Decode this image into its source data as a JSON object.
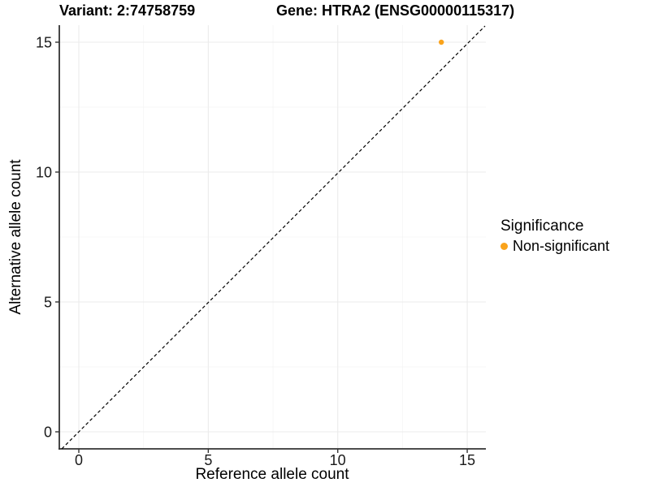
{
  "chart_data": {
    "type": "scatter",
    "titles": {
      "left": "Variant: 2:74758759",
      "right": "Gene: HTRA2 (ENSG00000115317)"
    },
    "xlabel": "Reference allele count",
    "ylabel": "Alternative allele count",
    "xlim": [
      -0.75,
      15.75
    ],
    "ylim": [
      -0.75,
      15.75
    ],
    "xticks": [
      0,
      5,
      10,
      15
    ],
    "yticks": [
      0,
      5,
      10,
      15
    ],
    "minor_gridlines": [
      2.5,
      7.5,
      12.5
    ],
    "grid": "on",
    "reference_line": {
      "type": "identity",
      "equation": "y = x",
      "style": "dashed",
      "color": "#000000"
    },
    "series": [
      {
        "name": "Non-significant",
        "color": "#FAA31B",
        "points": [
          {
            "x": 14,
            "y": 15
          }
        ]
      }
    ],
    "legend": {
      "position": "right",
      "title": "Significance",
      "entries": [
        {
          "label": "Non-significant",
          "color": "#FAA31B",
          "marker": "circle"
        }
      ]
    },
    "colors": {
      "grid_major": "#EBEBEB",
      "grid_minor": "#F5F5F5",
      "axis": "#333333",
      "tick_text": "#1A1A1A",
      "background": "#FFFFFF"
    }
  }
}
